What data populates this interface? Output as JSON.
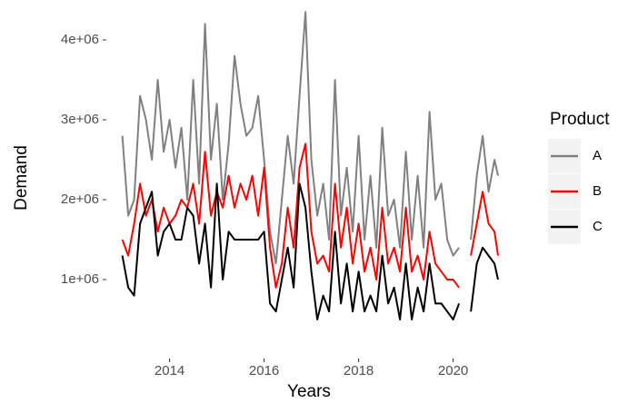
{
  "chart_data": {
    "type": "line",
    "x_label": "Years",
    "y_label": "Demand",
    "legend_title": "Product",
    "legend_position": "right",
    "x": [
      2013.0,
      2013.125,
      2013.25,
      2013.375,
      2013.5,
      2013.625,
      2013.75,
      2013.875,
      2014.0,
      2014.125,
      2014.25,
      2014.375,
      2014.5,
      2014.625,
      2014.75,
      2014.875,
      2015.0,
      2015.125,
      2015.25,
      2015.375,
      2015.5,
      2015.625,
      2015.75,
      2015.875,
      2016.0,
      2016.125,
      2016.25,
      2016.375,
      2016.5,
      2016.625,
      2016.75,
      2016.875,
      2017.0,
      2017.125,
      2017.25,
      2017.375,
      2017.5,
      2017.625,
      2017.75,
      2017.875,
      2018.0,
      2018.125,
      2018.25,
      2018.375,
      2018.5,
      2018.625,
      2018.75,
      2018.875,
      2019.0,
      2019.125,
      2019.25,
      2019.375,
      2019.5,
      2019.625,
      2019.75,
      2019.875,
      2020.0,
      2020.125,
      2020.25,
      2020.375,
      2020.5,
      2020.625,
      2020.75,
      2020.875,
      2020.95
    ],
    "series": [
      {
        "name": "A",
        "color": "#808080",
        "values": [
          2800000,
          1800000,
          2000000,
          3300000,
          3000000,
          2500000,
          3500000,
          2600000,
          3000000,
          2400000,
          2900000,
          2000000,
          3500000,
          2200000,
          4200000,
          2500000,
          3200000,
          2000000,
          2700000,
          3800000,
          3200000,
          2800000,
          2900000,
          3300000,
          2500000,
          1600000,
          1200000,
          2000000,
          2800000,
          2200000,
          3300000,
          4350000,
          2500000,
          1800000,
          2200000,
          1500000,
          3500000,
          1800000,
          2400000,
          1600000,
          2800000,
          1500000,
          2300000,
          1400000,
          2900000,
          1800000,
          2000000,
          1400000,
          2600000,
          1500000,
          2300000,
          1400000,
          3100000,
          2000000,
          2200000,
          1500000,
          1300000,
          1400000,
          null,
          1500000,
          2300000,
          2800000,
          2100000,
          2500000,
          2300000
        ]
      },
      {
        "name": "B",
        "color": "#ff0000",
        "values": [
          1500000,
          1300000,
          1700000,
          2200000,
          1800000,
          2000000,
          1600000,
          1900000,
          1700000,
          1800000,
          2000000,
          1900000,
          2200000,
          1700000,
          2600000,
          1800000,
          2100000,
          1900000,
          2300000,
          1900000,
          2200000,
          2000000,
          2300000,
          1800000,
          2400000,
          1400000,
          900000,
          1200000,
          1900000,
          1400000,
          2400000,
          2700000,
          1600000,
          1200000,
          1300000,
          1100000,
          2200000,
          1400000,
          1900000,
          1200000,
          1700000,
          1100000,
          1400000,
          1000000,
          1900000,
          1200000,
          1400000,
          1100000,
          1900000,
          1100000,
          1300000,
          1000000,
          1600000,
          1200000,
          1100000,
          1000000,
          1000000,
          900000,
          null,
          1300000,
          1700000,
          2100000,
          1700000,
          1600000,
          1300000
        ]
      },
      {
        "name": "C",
        "color": "#000000",
        "values": [
          1300000,
          900000,
          800000,
          1700000,
          1900000,
          2100000,
          1300000,
          1600000,
          1700000,
          1500000,
          1500000,
          1900000,
          1800000,
          1200000,
          1700000,
          900000,
          2200000,
          1000000,
          1600000,
          1500000,
          1500000,
          1500000,
          1500000,
          1500000,
          1600000,
          700000,
          600000,
          1000000,
          1400000,
          900000,
          2200000,
          1900000,
          1100000,
          500000,
          800000,
          600000,
          1600000,
          700000,
          1200000,
          600000,
          1100000,
          600000,
          800000,
          600000,
          1300000,
          700000,
          900000,
          500000,
          1200000,
          500000,
          900000,
          600000,
          1200000,
          700000,
          700000,
          600000,
          500000,
          700000,
          null,
          600000,
          1200000,
          1400000,
          1300000,
          1200000,
          1000000
        ]
      }
    ],
    "xlim": [
      2012.7,
      2021.25
    ],
    "xticks": [
      2014,
      2016,
      2018,
      2020
    ],
    "ylim": [
      0,
      4500000
    ],
    "yticks": [
      {
        "value": 1000000,
        "label": "1e+06"
      },
      {
        "value": 2000000,
        "label": "2e+06"
      },
      {
        "value": 3000000,
        "label": "3e+06"
      },
      {
        "value": 4000000,
        "label": "4e+06"
      }
    ],
    "grid": false
  }
}
